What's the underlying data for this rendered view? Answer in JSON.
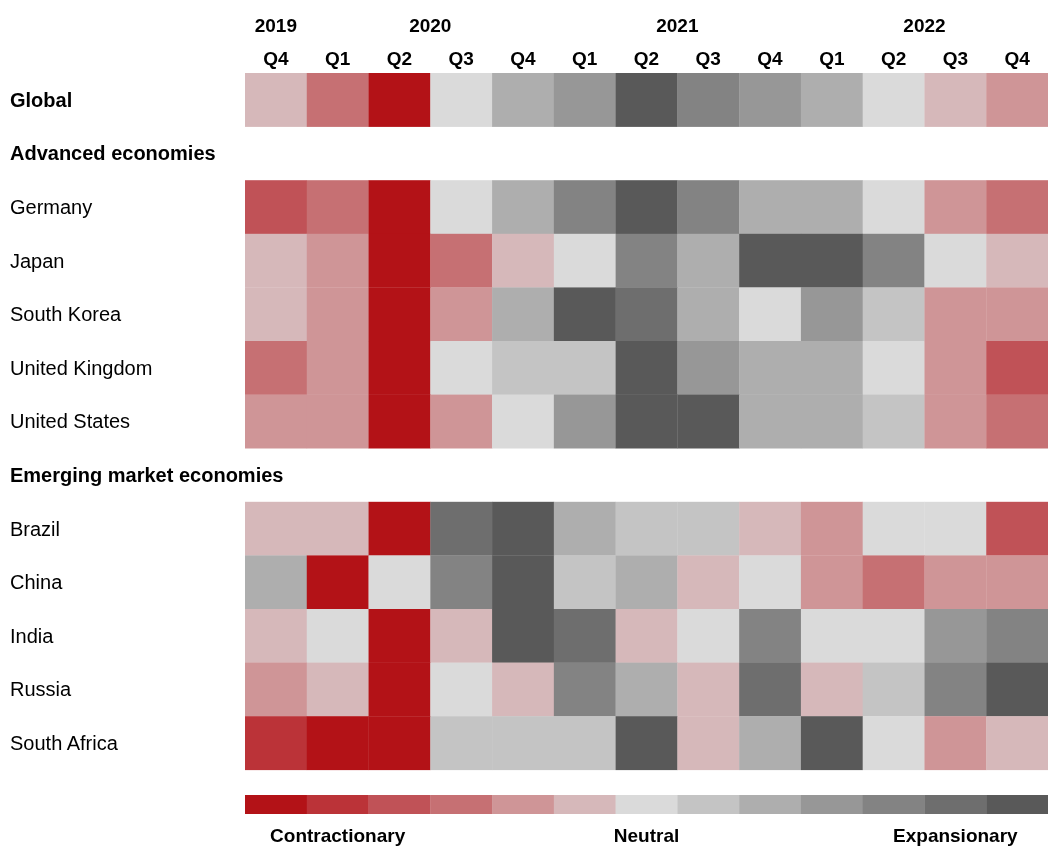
{
  "chart_data": {
    "type": "heatmap",
    "categories": [
      "Q4",
      "Q1",
      "Q2",
      "Q3",
      "Q4",
      "Q1",
      "Q2",
      "Q3",
      "Q4",
      "Q1",
      "Q2",
      "Q3",
      "Q4"
    ],
    "y_categories": [
      "Global",
      "Advanced economies",
      "Germany",
      "Japan",
      "South Korea",
      "United Kingdom",
      "United States",
      "Emerging market economies",
      "Brazil",
      "China",
      "India",
      "Russia",
      "South Africa"
    ],
    "cells": [
      [
        -1,
        -3,
        -6,
        0,
        2,
        3,
        6,
        4,
        3,
        2,
        0,
        -1,
        -2
      ],
      [
        null,
        null,
        null,
        null,
        null,
        null,
        null,
        null,
        null,
        null,
        null,
        null,
        null
      ],
      [
        -4,
        -3,
        -6,
        0,
        2,
        4,
        6,
        4,
        2,
        2,
        0,
        -2,
        -3
      ],
      [
        -1,
        -2,
        -6,
        -3,
        -1,
        0,
        4,
        2,
        6,
        6,
        4,
        0,
        -1
      ],
      [
        -1,
        -2,
        -6,
        -2,
        2,
        6,
        5,
        2,
        0,
        3,
        1,
        -2,
        -2
      ],
      [
        -3,
        -2,
        -6,
        0,
        1,
        1,
        6,
        3,
        2,
        2,
        0,
        -2,
        -4
      ],
      [
        -2,
        -2,
        -6,
        -2,
        0,
        3,
        6,
        6,
        2,
        2,
        1,
        -2,
        -3
      ],
      [
        null,
        null,
        null,
        null,
        null,
        null,
        null,
        null,
        null,
        null,
        null,
        null,
        null
      ],
      [
        -1,
        -1,
        -6,
        5,
        6,
        2,
        1,
        1,
        -1,
        -2,
        0,
        0,
        -4
      ],
      [
        2,
        -6,
        0,
        4,
        6,
        1,
        2,
        -1,
        0,
        -2,
        -3,
        -2,
        -2
      ],
      [
        -1,
        0,
        -6,
        -1,
        6,
        5,
        -1,
        0,
        4,
        0,
        0,
        3,
        4
      ],
      [
        -2,
        -1,
        -6,
        0,
        -1,
        4,
        2,
        -1,
        5,
        -1,
        1,
        4,
        6
      ],
      [
        -5,
        -6,
        -6,
        1,
        1,
        1,
        6,
        -1,
        2,
        6,
        0,
        -2,
        -1
      ]
    ],
    "clim": [
      -6.5,
      6.5
    ],
    "cticks": [
      {
        "value": -5,
        "label": "Contractionary"
      },
      {
        "value": 0,
        "label": "Neutral"
      },
      {
        "value": 5,
        "label": "Expansionary"
      }
    ],
    "annotations": [
      "2019",
      "2020",
      "2021",
      "2022"
    ]
  }
}
